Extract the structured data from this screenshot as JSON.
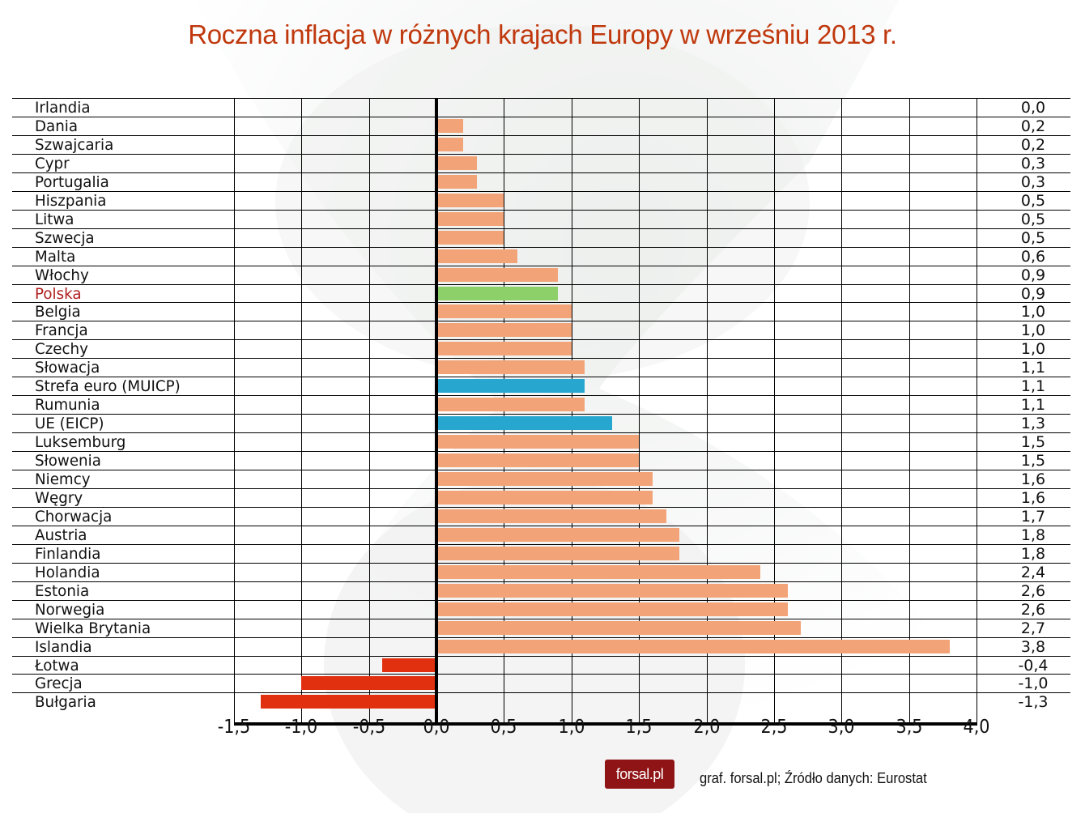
{
  "title": "Roczna inflacja w różnych krajach Europy w wrześniu 2013 r.",
  "footer": {
    "logo_text": "forsal.pl",
    "source": "graf. forsal.pl; Źródło danych: Eurostat"
  },
  "colors": {
    "title": "#c0390e",
    "positive_bar": "#f2a478",
    "negative_bar": "#e0300f",
    "poland_bar": "#8dd06a",
    "aggregate_bar": "#27a7cf",
    "poland_label": "#b01e1e",
    "logo_bg": "#8f1416"
  },
  "chart_data": {
    "type": "bar",
    "orientation": "horizontal",
    "title": "Roczna inflacja w różnych krajach Europy w wrześniu 2013 r.",
    "xlabel": "",
    "ylabel": "",
    "xlim": [
      -1.5,
      4.0
    ],
    "xticks": [
      "-1,5",
      "-1,0",
      "-0,5",
      "0,0",
      "0,5",
      "1,0",
      "1,5",
      "2,0",
      "2,5",
      "3,0",
      "3,5",
      "4,0"
    ],
    "grid": true,
    "legend": null,
    "categories": [
      "Irlandia",
      "Dania",
      "Szwajcaria",
      "Cypr",
      "Portugalia",
      "Hiszpania",
      "Litwa",
      "Szwecja",
      "Malta",
      "Włochy",
      "Polska",
      "Belgia",
      "Francja",
      "Czechy",
      "Słowacja",
      "Strefa euro (MUICP)",
      "Rumunia",
      "UE (EICP)",
      "Luksemburg",
      "Słowenia",
      "Niemcy",
      "Węgry",
      "Chorwacja",
      "Austria",
      "Finlandia",
      "Holandia",
      "Estonia",
      "Norwegia",
      "Wielka Brytania",
      "Islandia",
      "Łotwa",
      "Grecja",
      "Bułgaria"
    ],
    "values": [
      0.0,
      0.2,
      0.2,
      0.3,
      0.3,
      0.5,
      0.5,
      0.5,
      0.6,
      0.9,
      0.9,
      1.0,
      1.0,
      1.0,
      1.1,
      1.1,
      1.1,
      1.3,
      1.5,
      1.5,
      1.6,
      1.6,
      1.7,
      1.8,
      1.8,
      2.4,
      2.6,
      2.6,
      2.7,
      3.8,
      -0.4,
      -1.0,
      -1.3
    ],
    "value_labels": [
      "0,0",
      "0,2",
      "0,2",
      "0,3",
      "0,3",
      "0,5",
      "0,5",
      "0,5",
      "0,6",
      "0,9",
      "0,9",
      "1,0",
      "1,0",
      "1,0",
      "1,1",
      "1,1",
      "1,1",
      "1,3",
      "1,5",
      "1,5",
      "1,6",
      "1,6",
      "1,7",
      "1,8",
      "1,8",
      "2,4",
      "2,6",
      "2,6",
      "2,7",
      "3,8",
      "-0,4",
      "-1,0",
      "-1,3"
    ],
    "highlight": {
      "Polska": "poland",
      "Strefa euro (MUICP)": "aggregate",
      "UE (EICP)": "aggregate"
    },
    "source": "Eurostat"
  }
}
